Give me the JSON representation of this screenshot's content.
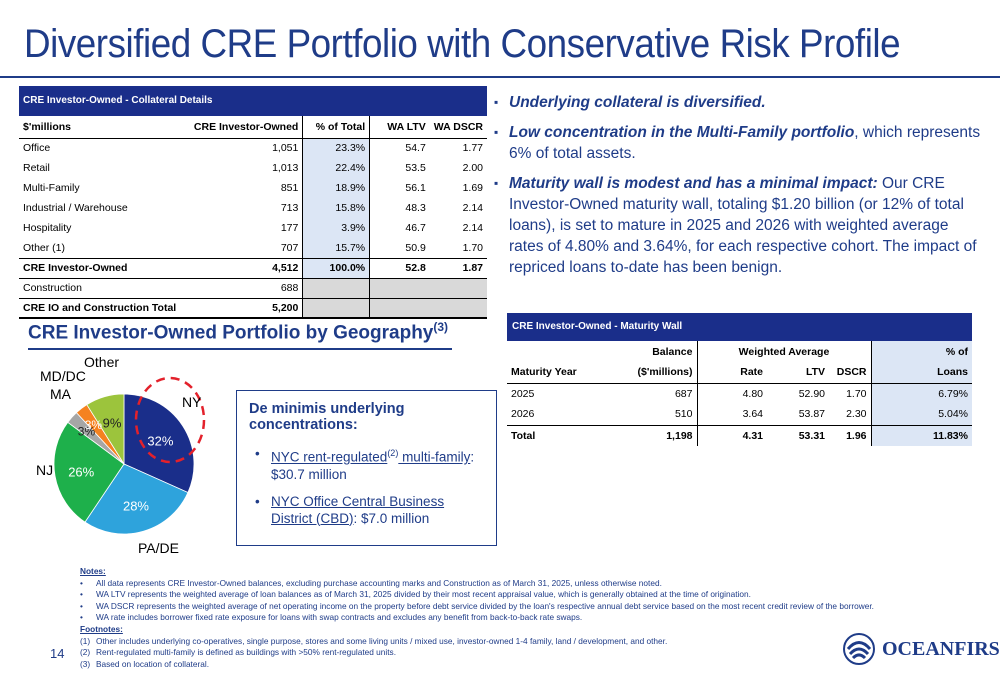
{
  "title": "Diversified CRE Portfolio with Conservative Risk Profile",
  "collateral_table": {
    "header": "CRE Investor-Owned - Collateral Details",
    "columns": [
      "$'millions",
      "CRE Investor-Owned",
      "% of Total",
      "WA LTV",
      "WA DSCR"
    ],
    "rows": [
      {
        "name": "Office",
        "amount": "1,051",
        "pct": "23.3%",
        "ltv": "54.7",
        "dscr": "1.77"
      },
      {
        "name": "Retail",
        "amount": "1,013",
        "pct": "22.4%",
        "ltv": "53.5",
        "dscr": "2.00"
      },
      {
        "name": "Multi-Family",
        "amount": "851",
        "pct": "18.9%",
        "ltv": "56.1",
        "dscr": "1.69"
      },
      {
        "name": "Industrial / Warehouse",
        "amount": "713",
        "pct": "15.8%",
        "ltv": "48.3",
        "dscr": "2.14"
      },
      {
        "name": "Hospitality",
        "amount": "177",
        "pct": "3.9%",
        "ltv": "46.7",
        "dscr": "2.14"
      },
      {
        "name": "Other (1)",
        "amount": "707",
        "pct": "15.7%",
        "ltv": "50.9",
        "dscr": "1.70"
      }
    ],
    "total": {
      "name": "CRE Investor-Owned",
      "amount": "4,512",
      "pct": "100.0%",
      "ltv": "52.8",
      "dscr": "1.87"
    },
    "construction": {
      "name": "Construction",
      "amount": "688"
    },
    "grand_total": {
      "name": "CRE IO and Construction Total",
      "amount": "5,200"
    }
  },
  "bullets": [
    {
      "bold": "Underlying collateral is diversified.",
      "text": ""
    },
    {
      "bold": "Low concentration in the Multi-Family portfolio",
      "text": ", which represents 6% of total assets."
    },
    {
      "bold": "Maturity wall is modest and has a minimal impact:",
      "text": " Our CRE Investor-Owned maturity wall, totaling $1.20 billion (or 12% of total loans), is set to mature in 2025 and 2026 with weighted average rates of 4.80% and 3.64%, for each respective cohort. The impact of repriced loans to-date has been benign."
    }
  ],
  "geo": {
    "title": "CRE Investor-Owned Portfolio by Geography",
    "title_sup": "(3)"
  },
  "chart_data": {
    "type": "pie",
    "categories": [
      "NY",
      "PA/DE",
      "NJ",
      "MA",
      "MD/DC",
      "Other"
    ],
    "values": [
      32,
      28,
      26,
      3,
      3,
      9
    ],
    "value_labels": [
      "32%",
      "28%",
      "26%",
      "3%",
      "3%",
      "9%"
    ],
    "colors": [
      "#1a2e8a",
      "#2ea3dc",
      "#1eb04b",
      "#a6a6a6",
      "#f58220",
      "#9cc43c"
    ]
  },
  "callout": {
    "title": "De minimis underlying concentrations:",
    "item1_link": "NYC rent-regulated",
    "item1_sup": "(2)",
    "item1_link2": " multi-family",
    "item1_text": ": $30.7 million",
    "item2_link": "NYC Office Central Business District (CBD)",
    "item2_text": ": $7.0 million"
  },
  "maturity_table": {
    "header": "CRE Investor-Owned - Maturity Wall",
    "head1": {
      "balance": "Balance",
      "wa": "Weighted Average",
      "pct": "% of"
    },
    "head2": {
      "year": "Maturity Year",
      "balance": "($'millions)",
      "rate": "Rate",
      "ltv": "LTV",
      "dscr": "DSCR",
      "pct": "Loans"
    },
    "rows": [
      {
        "year": "2025",
        "balance": "687",
        "rate": "4.80",
        "ltv": "52.90",
        "dscr": "1.70",
        "pct": "6.79%"
      },
      {
        "year": "2026",
        "balance": "510",
        "rate": "3.64",
        "ltv": "53.87",
        "dscr": "2.30",
        "pct": "5.04%"
      }
    ],
    "total": {
      "year": "Total",
      "balance": "1,198",
      "rate": "4.31",
      "ltv": "53.31",
      "dscr": "1.96",
      "pct": "11.83%"
    }
  },
  "notes": {
    "notes_heading": "Notes:",
    "notes": [
      "All data represents CRE Investor-Owned balances, excluding purchase accounting marks and Construction as of March 31, 2025, unless otherwise noted.",
      "WA LTV represents the weighted average of loan balances as of March 31, 2025 divided by their most recent appraisal value, which is generally obtained at the time of origination.",
      "WA DSCR represents the weighted average of net operating income on the property before debt service divided by the loan's respective annual debt service based on the most recent credit review of the borrower.",
      "WA rate includes borrower fixed rate exposure for loans with swap contracts and excludes any benefit from back-to-back rate swaps."
    ],
    "footnotes_heading": "Footnotes:",
    "footnotes": [
      {
        "mk": "(1)",
        "text": "Other includes underlying co-operatives, single purpose, stores and some living units / mixed use, investor-owned 1-4 family, land / development, and other."
      },
      {
        "mk": "(2)",
        "text": "Rent-regulated multi-family is defined as buildings with >50% rent-regulated units."
      },
      {
        "mk": "(3)",
        "text": "Based on location of collateral."
      }
    ]
  },
  "page_number": "14",
  "logo_text": "OCEANFIRST"
}
